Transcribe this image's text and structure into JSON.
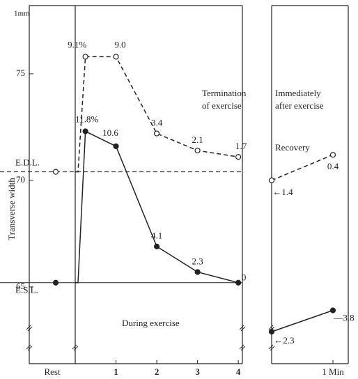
{
  "chart_data": {
    "type": "line",
    "y_unit": "1mm",
    "ylabel": "Transverse width",
    "ylim": [
      61.4,
      78.2
    ],
    "yticks": [
      65,
      70,
      75
    ],
    "rest_label": "Rest",
    "xlim": [
      0,
      4.1
    ],
    "xticks": [
      1,
      2,
      3,
      4
    ],
    "recovery_xlim": [
      0,
      1.25
    ],
    "recovery_xticks": [
      {
        "value": 1,
        "label": "1 Min"
      }
    ],
    "reference_lines": [
      {
        "label": "E.D.L.",
        "value": 70.4,
        "style": "dashed"
      },
      {
        "label": "E.S.L.",
        "value": 65.2,
        "style": "solid"
      }
    ],
    "annotations": [
      "Termination",
      "of exercise",
      "Immediately",
      "after exercise",
      "Recovery",
      "During exercise"
    ],
    "series": [
      {
        "style": "dashed",
        "marker": "open",
        "color": "#222",
        "rest": 70.4,
        "x": [
          0.25,
          1,
          2,
          3,
          4
        ],
        "values": [
          75.8,
          75.8,
          72.2,
          71.4,
          71.1
        ],
        "change_labels": [
          "9.1%",
          "9.0",
          "3.4",
          "2.1",
          "1.7"
        ],
        "recovery_x": [
          0,
          1
        ],
        "recovery_values": [
          70.0,
          71.2
        ],
        "recovery_labels": [
          "←1.4",
          "0.4"
        ]
      },
      {
        "style": "solid",
        "marker": "filled",
        "color": "#222",
        "rest": 65.2,
        "x": [
          0.25,
          1,
          2,
          3,
          4
        ],
        "values": [
          72.3,
          71.6,
          66.9,
          65.7,
          65.2
        ],
        "change_labels": [
          "11.8%",
          "10.6",
          "4.1",
          "2.3",
          "0"
        ],
        "recovery_x": [
          0,
          1
        ],
        "recovery_values": [
          62.9,
          63.9
        ],
        "recovery_labels": [
          "←2.3",
          "—3.8"
        ]
      }
    ]
  }
}
